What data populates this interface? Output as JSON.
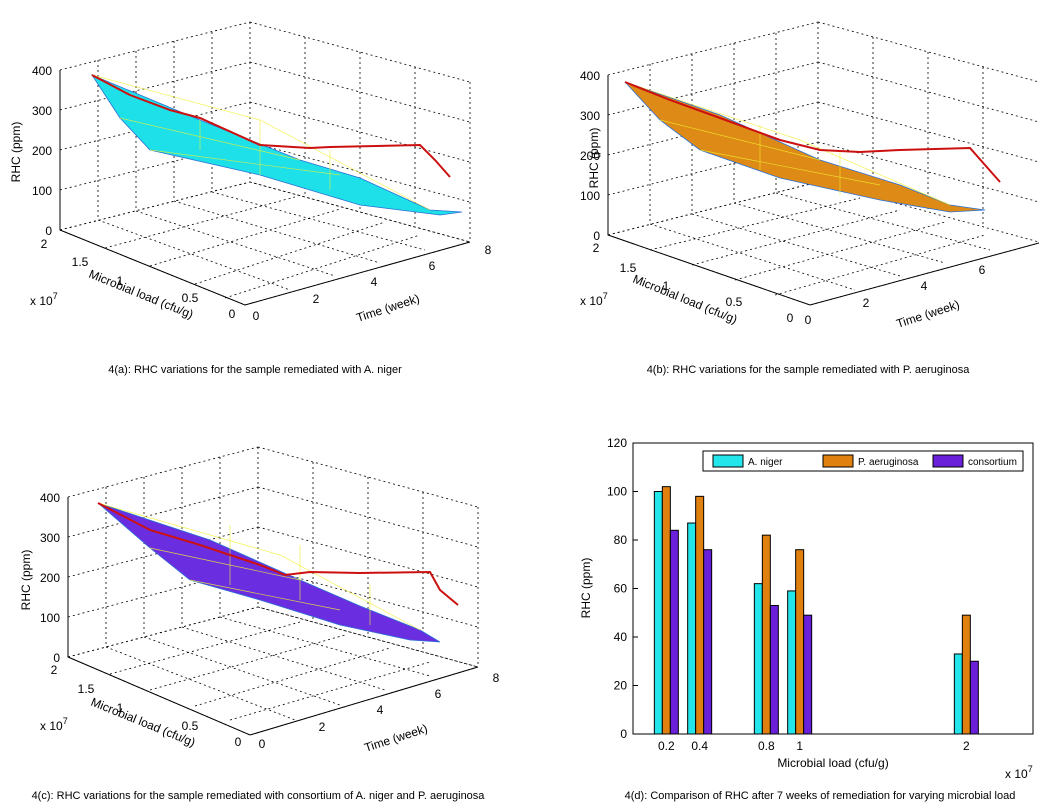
{
  "panels_3d": [
    {
      "id": "a",
      "caption": "4(a): RHC variations for the sample remediated with A. niger",
      "zlabel": "RHC (ppm)",
      "ylabel": "Microbial load (cfu/g)",
      "xlabel": "Time (week)",
      "exponent": "x 10",
      "exponent_power": "7",
      "z_ticks": [
        "0",
        "100",
        "200",
        "300",
        "400"
      ],
      "y_ticks": [
        "0",
        "0.5",
        "1",
        "1.5",
        "2"
      ],
      "x_ticks": [
        "0",
        "2",
        "4",
        "6",
        "8"
      ],
      "surface_color": "#1ee0e8",
      "edge_color": "#2b6fd6",
      "mesh_color": "#f0f030",
      "line_color": "#cc1010"
    },
    {
      "id": "b",
      "caption": "4(b): RHC variations for the sample remediated with P. aeruginosa",
      "zlabel": "RHC (ppm)",
      "ylabel": "Microbial load (cfu/g)",
      "xlabel": "Time (week)",
      "exponent": "x 10",
      "exponent_power": "7",
      "z_ticks": [
        "0",
        "100",
        "200",
        "300",
        "400"
      ],
      "y_ticks": [
        "0",
        "0.5",
        "1",
        "1.5",
        "2"
      ],
      "x_ticks": [
        "0",
        "2",
        "4",
        "6"
      ],
      "surface_color": "#de8a16",
      "edge_color": "#2b6fd6",
      "mesh_color": "#f0f030",
      "line_color": "#cc1010"
    },
    {
      "id": "c",
      "caption": "4(c): RHC variations for the sample remediated with consortium of A. niger and P. aeruginosa",
      "zlabel": "RHC (ppm)",
      "ylabel": "Microbial load (cfu/g)",
      "xlabel": "Time (week)",
      "exponent": "x 10",
      "exponent_power": "7",
      "z_ticks": [
        "0",
        "100",
        "200",
        "300",
        "400"
      ],
      "y_ticks": [
        "0",
        "0.5",
        "1",
        "1.5",
        "2"
      ],
      "x_ticks": [
        "0",
        "2",
        "4",
        "6",
        "8"
      ],
      "surface_color": "#6a2ee0",
      "edge_color": "#2b6fd6",
      "mesh_color": "#f0f030",
      "line_color": "#cc1010"
    }
  ],
  "chart_data": [
    {
      "type": "bar",
      "caption": "4(d): Comparison of RHC after 7 weeks of remediation for varying microbial load",
      "xlabel": "Microbial load (cfu/g)",
      "ylabel": "RHC (ppm)",
      "x_exponent": "x 10",
      "x_exponent_power": "7",
      "categories": [
        "0.2",
        "0.4",
        "0.8",
        "1",
        "2"
      ],
      "ylim": [
        0,
        120
      ],
      "xlim": [
        0,
        2.4
      ],
      "y_ticks": [
        "0",
        "20",
        "40",
        "60",
        "80",
        "100",
        "120"
      ],
      "legend_position": "top",
      "series": [
        {
          "name": "A. niger",
          "color": "#22e6ea",
          "values": [
            100,
            87,
            62,
            59,
            33
          ]
        },
        {
          "name": "P. aeruginosa",
          "color": "#e0800e",
          "values": [
            102,
            98,
            82,
            76,
            49
          ]
        },
        {
          "name": "consortium",
          "color": "#6a1fd8",
          "values": [
            84,
            76,
            53,
            49,
            30
          ]
        }
      ]
    }
  ]
}
